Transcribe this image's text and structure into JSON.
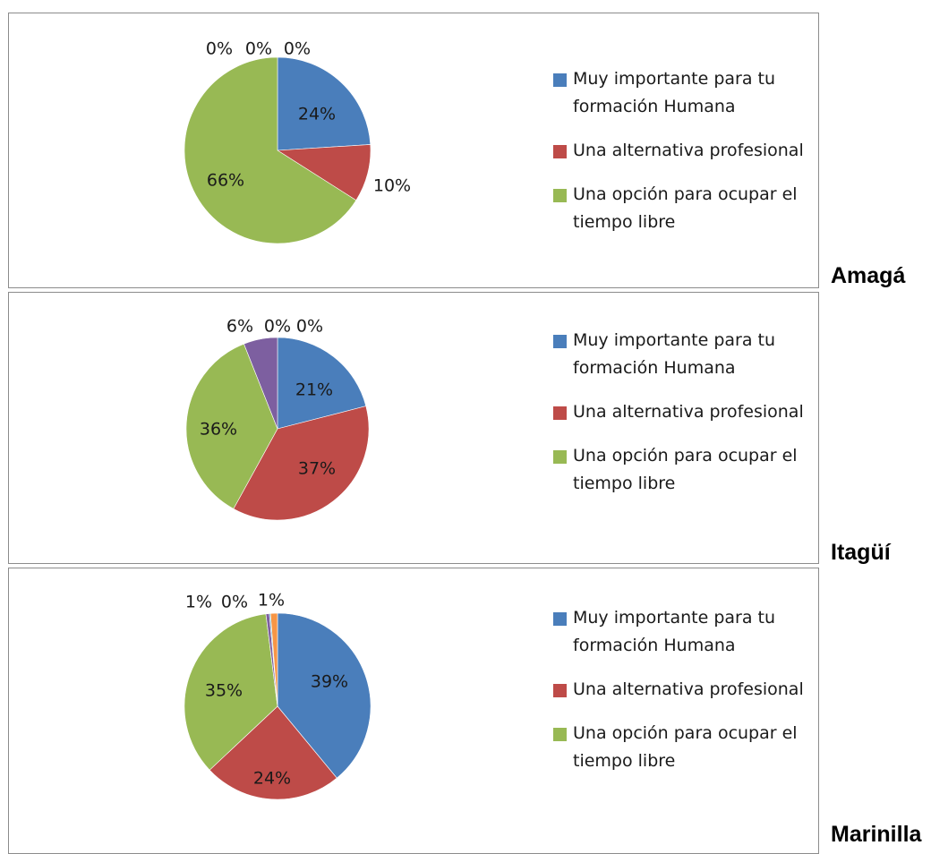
{
  "colors": {
    "series": [
      "#4A7EBB",
      "#BE4B48",
      "#98B954",
      "#7D5FA0",
      "#4BACC6",
      "#F79646"
    ],
    "border": "#8c8c8c",
    "label": "#1a1a1a"
  },
  "legend_labels": [
    "Muy importante para tu formación Humana",
    "Una alternativa profesional",
    "Una opción para ocupar el tiempo libre"
  ],
  "chart_data": [
    {
      "type": "pie",
      "title": "Amagá",
      "categories": [
        "Muy importante para tu formación Humana",
        "Una alternativa profesional",
        "Una opción para ocupar el tiempo libre",
        "",
        "",
        ""
      ],
      "values": [
        24,
        10,
        66,
        0,
        0,
        0
      ],
      "data_labels": [
        "24%",
        "10%",
        "66%",
        "0%",
        "0%",
        "0%"
      ],
      "legend_position": "right"
    },
    {
      "type": "pie",
      "title": "Itagüí",
      "categories": [
        "Muy importante para tu formación Humana",
        "Una alternativa profesional",
        "Una opción para ocupar el tiempo libre",
        "",
        "",
        ""
      ],
      "values": [
        21,
        37,
        36,
        6,
        0,
        0
      ],
      "data_labels": [
        "21%",
        "37%",
        "36%",
        "6%",
        "0%",
        "0%"
      ],
      "legend_position": "right"
    },
    {
      "type": "pie",
      "title": "Marinilla",
      "categories": [
        "Muy importante para tu formación Humana",
        "Una alternativa profesional",
        "Una opción para ocupar el tiempo libre",
        "",
        "",
        ""
      ],
      "values": [
        39,
        24,
        35,
        0.6,
        0.2,
        1.2
      ],
      "data_labels": [
        "39%",
        "24%",
        "35%",
        "1%",
        "0%",
        "1%"
      ],
      "legend_position": "right"
    }
  ]
}
